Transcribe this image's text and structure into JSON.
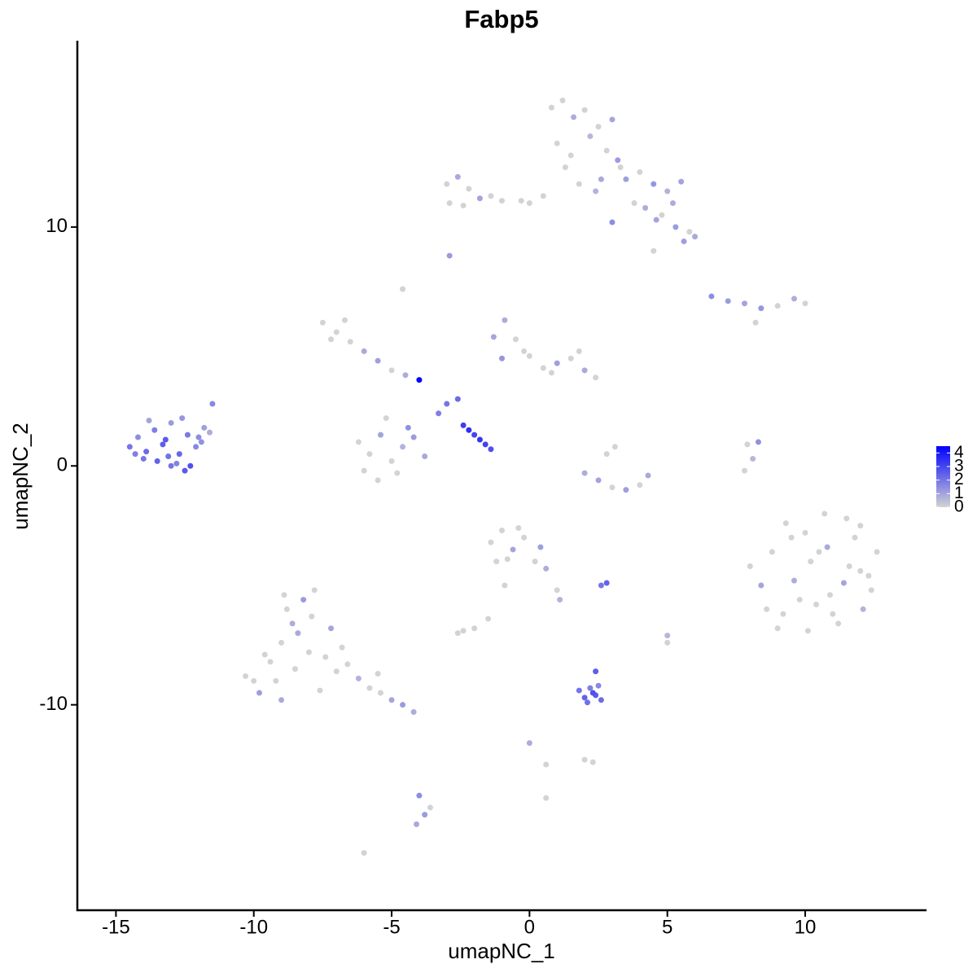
{
  "chart_data": {
    "type": "scatter",
    "title": "Fabp5",
    "x_label": "umapNC_1",
    "y_label": "umapNC_2",
    "xlim": [
      -16.4,
      14.4
    ],
    "ylim": [
      -18.6,
      17.8
    ],
    "xticks": [
      -15,
      -10,
      -5,
      0,
      5,
      10
    ],
    "yticks": [
      -10,
      0,
      10
    ],
    "color_low": "#d3d3d3",
    "color_high": "#0000ff",
    "colorbar_lim": [
      0,
      4.5
    ],
    "colorbar_ticks": [
      0,
      1,
      2,
      3,
      4
    ],
    "x": [
      -14.5,
      -14.2,
      -13.9,
      -13.6,
      -13.3,
      -13.0,
      -12.7,
      -12.4,
      -12.1,
      -11.8,
      -14.0,
      -13.5,
      -13.1,
      -12.8,
      -12.3,
      -11.9,
      -11.5,
      -14.3,
      -13.8,
      -13.2,
      -12.6,
      -12.0,
      -11.6,
      -13.0,
      -12.5,
      0.8,
      1.2,
      1.6,
      2.0,
      2.5,
      3.0,
      1.0,
      1.5,
      2.2,
      2.8,
      3.2,
      1.3,
      2.6,
      3.5,
      4.0,
      4.5,
      5.0,
      5.5,
      3.8,
      4.2,
      4.8,
      5.3,
      5.8,
      6.0,
      5.6,
      4.5,
      3.0,
      0.5,
      0.0,
      -0.3,
      1.8,
      2.4,
      3.3,
      4.6,
      5.2,
      -3.0,
      -2.6,
      -2.2,
      -1.8,
      -1.4,
      -1.0,
      -2.9,
      -2.4,
      -2.9,
      -4.6,
      -7.5,
      -7.0,
      -6.5,
      -6.0,
      -7.2,
      -6.7,
      -5.5,
      -5.0,
      -4.5,
      -6.2,
      -5.8,
      -5.4,
      -5.0,
      -4.6,
      -4.2,
      -3.8,
      -6.0,
      -5.5,
      -4.8,
      -4.4,
      -5.2,
      -1.3,
      -0.9,
      -0.5,
      0,
      0.5,
      1.0,
      1.5,
      2.0,
      2.4,
      -0.2,
      0.8,
      1.8,
      -1.0,
      -2.4,
      -2.2,
      -2.0,
      -1.8,
      -1.6,
      -1.4,
      -3.0,
      -2.6,
      -3.3,
      -4.0,
      6.6,
      7.2,
      7.8,
      8.4,
      9.0,
      9.6,
      10.0,
      8.2,
      2.0,
      2.5,
      3.0,
      3.5,
      4.0,
      4.3,
      3.1,
      2.8,
      7.9,
      8.1,
      7.8,
      8.3,
      8.0,
      8.4,
      8.8,
      9.2,
      9.6,
      10.0,
      10.4,
      10.8,
      11.2,
      11.6,
      12.0,
      12.4,
      9.0,
      9.5,
      10.2,
      10.9,
      11.5,
      12.1,
      12.6,
      8.6,
      9.3,
      10.1,
      10.7,
      11.4,
      12.0,
      11.0,
      10.5,
      11.8,
      9.8,
      12.3,
      -10.3,
      -9.8,
      -9.4,
      -9.0,
      -8.6,
      -8.2,
      -7.8,
      -9.2,
      -8.8,
      -8.4,
      -7.9,
      -7.4,
      -7.0,
      -6.6,
      -6.2,
      -5.8,
      -5.4,
      -5.0,
      -4.6,
      -4.2,
      -8.0,
      -8.5,
      -9.0,
      -9.6,
      -10.0,
      -7.2,
      -6.8,
      -5.5,
      -8.9,
      -7.6,
      -1.4,
      -1.0,
      -0.6,
      -0.2,
      0.2,
      0.6,
      1.0,
      -1.2,
      -0.8,
      0.4,
      1.1,
      -0.4,
      -1.5,
      -0.9,
      1.8,
      2.0,
      2.2,
      2.4,
      2.6,
      2.1,
      2.3,
      2.5,
      2.4,
      2.8,
      2.6,
      5.0,
      5.0,
      -4.0,
      -3.8,
      -4.1,
      -3.6,
      0.6,
      0,
      2.3,
      2.0,
      -6.0,
      0.6,
      -2.4,
      -2.0,
      -2.6
    ],
    "y": [
      0.8,
      1.2,
      0.6,
      1.5,
      0.9,
      1.8,
      0.5,
      1.3,
      0.8,
      1.6,
      0.3,
      0.2,
      0.4,
      0.1,
      0.0,
      1.0,
      2.6,
      0.5,
      1.9,
      1.1,
      2.0,
      1.2,
      1.4,
      0.0,
      -0.2,
      15.0,
      15.3,
      14.6,
      14.9,
      14.2,
      14.5,
      13.5,
      13.0,
      13.8,
      13.2,
      12.8,
      12.5,
      12.0,
      12.0,
      12.3,
      11.8,
      11.5,
      11.9,
      11.0,
      10.8,
      10.5,
      10.0,
      9.8,
      9.6,
      9.4,
      9.0,
      10.2,
      11.3,
      11.0,
      11.1,
      11.8,
      11.5,
      12.5,
      10.3,
      11.0,
      11.8,
      12.1,
      11.6,
      11.2,
      11.3,
      11.1,
      11.0,
      10.9,
      8.8,
      7.4,
      6.0,
      5.6,
      5.2,
      4.8,
      5.3,
      6.1,
      4.4,
      4.0,
      3.8,
      1.0,
      0.5,
      1.3,
      0.2,
      0.8,
      1.2,
      0.4,
      -0.2,
      -0.6,
      -0.3,
      1.6,
      2.0,
      5.4,
      6.1,
      5.3,
      4.6,
      4.1,
      4.3,
      4.5,
      4.0,
      3.7,
      4.8,
      3.9,
      4.8,
      4.5,
      1.7,
      1.5,
      1.3,
      1.1,
      0.9,
      0.7,
      2.6,
      2.8,
      2.2,
      3.6,
      7.1,
      6.9,
      6.8,
      6.6,
      6.7,
      7.0,
      6.8,
      6.0,
      -0.3,
      -0.6,
      -0.9,
      -1.0,
      -0.8,
      -0.4,
      0.8,
      0.5,
      0.9,
      0.3,
      -0.2,
      1.0,
      -4.2,
      -5.0,
      -3.6,
      -6.2,
      -4.8,
      -2.8,
      -5.8,
      -3.4,
      -6.6,
      -4.2,
      -2.5,
      -5.2,
      -6.8,
      -3.0,
      -4.0,
      -5.4,
      -2.2,
      -6.0,
      -3.6,
      -6.0,
      -2.4,
      -6.9,
      -2.0,
      -4.9,
      -4.4,
      -6.2,
      -3.6,
      -3.0,
      -5.6,
      -4.6,
      -8.8,
      -9.5,
      -8.2,
      -7.4,
      -6.6,
      -5.6,
      -5.2,
      -9.0,
      -6.0,
      -7.0,
      -6.3,
      -8.0,
      -8.6,
      -8.3,
      -8.9,
      -9.3,
      -9.5,
      -9.8,
      -10.0,
      -10.3,
      -7.8,
      -8.5,
      -9.8,
      -7.9,
      -9.0,
      -6.8,
      -7.6,
      -8.7,
      -5.4,
      -9.4,
      -3.2,
      -2.7,
      -3.5,
      -3.0,
      -4.0,
      -4.3,
      -5.2,
      -4.0,
      -3.9,
      -3.4,
      -5.6,
      -2.6,
      -6.4,
      -5.0,
      -9.4,
      -9.7,
      -9.3,
      -9.6,
      -9.8,
      -9.9,
      -9.5,
      -9.2,
      -8.6,
      -4.9,
      -5.0,
      -7.4,
      -7.1,
      -13.8,
      -14.6,
      -15.0,
      -14.3,
      -12.5,
      -11.6,
      -12.4,
      -12.3,
      -16.2,
      -13.9,
      -6.9,
      -6.8,
      -7.0
    ],
    "values": [
      2.0,
      1.5,
      2.2,
      1.8,
      2.5,
      1.2,
      2.3,
      1.9,
      1.6,
      1.1,
      2.0,
      2.4,
      2.1,
      1.7,
      2.8,
      1.4,
      1.6,
      1.8,
      1.0,
      2.6,
      1.3,
      1.5,
      0.8,
      2.0,
      2.6,
      0,
      0,
      0.8,
      0,
      0,
      1.0,
      0,
      0,
      0.6,
      0,
      1.2,
      0,
      0.9,
      1.1,
      0,
      1.3,
      0.7,
      1.0,
      0,
      0.8,
      0,
      1.2,
      0,
      0.9,
      1.1,
      0,
      1.5,
      0,
      0,
      0,
      0,
      0.7,
      0,
      1.0,
      0.8,
      0,
      0.9,
      0,
      1.0,
      0,
      0,
      0,
      0,
      1.2,
      0,
      0,
      0,
      0,
      0.9,
      0,
      0,
      1.1,
      0,
      0.8,
      0,
      0,
      1.0,
      0,
      0.7,
      1.2,
      0.9,
      0,
      0,
      0,
      1.4,
      0,
      1.0,
      0.8,
      0,
      0,
      0,
      1.1,
      0,
      0.9,
      0,
      0,
      0,
      0,
      1.3,
      3.2,
      3.5,
      3.0,
      3.4,
      3.1,
      2.8,
      2.0,
      2.2,
      1.8,
      4.4,
      1.5,
      1.2,
      1.0,
      1.3,
      0,
      0.8,
      0,
      0,
      0.8,
      1.0,
      0,
      1.1,
      0,
      0.9,
      0,
      0,
      0,
      0.6,
      0,
      1.4,
      0,
      1.0,
      0,
      0,
      0.8,
      0,
      0,
      0.9,
      0,
      0,
      0,
      0,
      0,
      0,
      0,
      0,
      0,
      0.7,
      0,
      0,
      0,
      0,
      0,
      1.0,
      0,
      0,
      0,
      0,
      0,
      0,
      0,
      1.1,
      0,
      0,
      0.8,
      1.2,
      0,
      0,
      0,
      0.9,
      0,
      0,
      0,
      0,
      0.7,
      0,
      0,
      1.0,
      1.2,
      0.8,
      0,
      0,
      0.9,
      0,
      0,
      1.0,
      0,
      0,
      0,
      0,
      0,
      0,
      1.0,
      0,
      0,
      0.8,
      0,
      0,
      0,
      1.1,
      0.7,
      0,
      0,
      0,
      2.0,
      2.4,
      1.8,
      2.6,
      2.2,
      2.1,
      2.8,
      1.6,
      2.5,
      2.4,
      2.0,
      0,
      0.6,
      1.5,
      1.2,
      0.9,
      0,
      0,
      0.8,
      0,
      0,
      0,
      0,
      0,
      0,
      0
    ]
  }
}
